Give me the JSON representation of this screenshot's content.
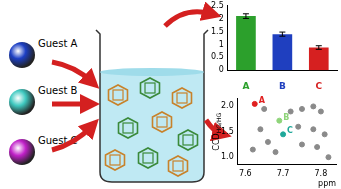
{
  "diagram": {
    "guests": [
      {
        "label": "Guest A",
        "color": "#1c3fc4"
      },
      {
        "label": "Guest B",
        "color": "#3fc9c0"
      },
      {
        "label": "Guest C",
        "color": "#c020c8"
      }
    ]
  },
  "chart_data": [
    {
      "type": "bar",
      "categories": [
        "A",
        "B",
        "C"
      ],
      "values": [
        2.1,
        1.4,
        0.88
      ],
      "errors": [
        0.09,
        0.08,
        0.07
      ],
      "colors": [
        "#2ca02c",
        "#1f3fbf",
        "#d62020"
      ],
      "ylim": [
        0,
        2.5
      ],
      "yticks": [
        0,
        0.5,
        1,
        1.5,
        2,
        2.5
      ],
      "grid": false
    },
    {
      "type": "scatter",
      "x_label": "ppm",
      "y_label": "CCD",
      "y_label_sub": "HG/HG",
      "marker": "circle",
      "series": [
        {
          "name": "A",
          "color": "#e02020",
          "x": [
            7.625
          ],
          "values": [
            2.05
          ]
        },
        {
          "name": "B",
          "color": "#8fd47a",
          "x": [
            7.69
          ],
          "values": [
            1.72
          ]
        },
        {
          "name": "C",
          "color": "#1fa89a",
          "x": [
            7.7
          ],
          "values": [
            1.45
          ]
        },
        {
          "color": "#8a8a8a",
          "x": [
            7.65,
            7.64,
            7.66,
            7.72,
            7.75,
            7.78,
            7.8,
            7.74,
            7.78,
            7.81,
            7.75,
            7.79,
            7.68,
            7.82,
            7.62
          ],
          "values": [
            1.95,
            1.55,
            1.3,
            1.9,
            1.95,
            2.0,
            1.9,
            1.6,
            1.55,
            1.45,
            1.25,
            1.2,
            1.1,
            1.0,
            1.15
          ]
        }
      ],
      "xlim": [
        7.58,
        7.84
      ],
      "xticks": [
        7.6,
        7.7,
        7.8
      ],
      "ylim": [
        0.85,
        2.15
      ],
      "yticks": [
        {
          "value": 1,
          "label": "1.0"
        },
        1.5,
        {
          "value": 2,
          "label": "2.0"
        }
      ],
      "grid": false
    }
  ]
}
